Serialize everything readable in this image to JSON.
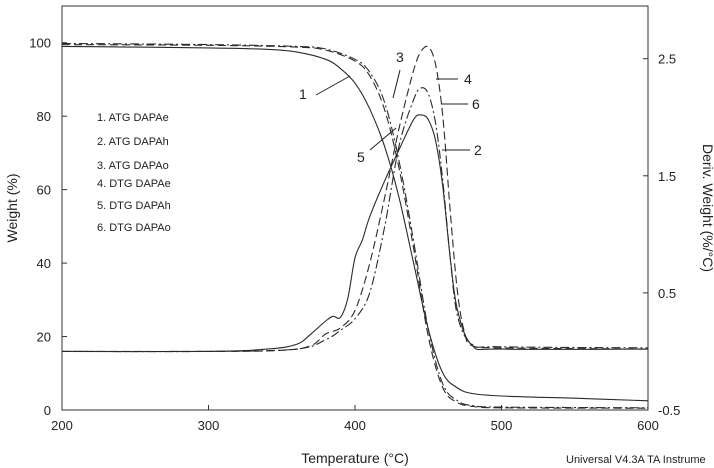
{
  "chart_data": {
    "type": "line",
    "xlabel": "Temperature (°C)",
    "ylabel": "Weight (%)",
    "y2label": "Deriv. Weight (%/°C)",
    "xlim": [
      200,
      600
    ],
    "ylim": [
      0,
      110
    ],
    "y2lim": [
      -0.5,
      2.95
    ],
    "x_ticks": [
      200,
      300,
      400,
      500,
      600
    ],
    "y_ticks": [
      0,
      20,
      40,
      60,
      80,
      100
    ],
    "y2_ticks": [
      -0.5,
      0.5,
      1.5,
      2.5
    ],
    "legend": [
      "1. ATG DAPAe",
      "2. ATG DAPAh",
      "3. ATG DAPAo",
      "4. DTG DAPAe",
      "5. DTG DAPAh",
      "6. DTG DAPAo"
    ],
    "series": [
      {
        "label": "1",
        "axis": "left",
        "dash": "solid",
        "x": [
          200,
          250,
          300,
          340,
          360,
          380,
          390,
          400,
          410,
          420,
          430,
          440,
          450,
          460,
          470,
          480,
          500,
          550,
          600
        ],
        "y": [
          99,
          98.8,
          98.6,
          98.2,
          97.5,
          95.5,
          93,
          89,
          82,
          72,
          58,
          40,
          22,
          10,
          6,
          4.5,
          3.8,
          3.2,
          2.5
        ]
      },
      {
        "label": "2",
        "axis": "left",
        "dash": "longdash",
        "x": [
          200,
          300,
          360,
          380,
          400,
          410,
          420,
          430,
          440,
          450,
          460,
          470,
          480,
          500,
          600
        ],
        "y": [
          99.5,
          99.3,
          98.8,
          98,
          95,
          91,
          82,
          66,
          44,
          20,
          6,
          2,
          1,
          0.6,
          0.5
        ]
      },
      {
        "label": "3",
        "axis": "left",
        "dash": "dashdot",
        "x": [
          200,
          300,
          360,
          380,
          400,
          410,
          420,
          430,
          440,
          450,
          460,
          470,
          480,
          500,
          600
        ],
        "y": [
          99.8,
          99.5,
          99,
          98.3,
          95.5,
          92,
          84,
          68,
          46,
          22,
          7,
          2.5,
          1.2,
          0.8,
          0.6
        ]
      },
      {
        "label": "4",
        "axis": "right",
        "dash": "longdash",
        "x": [
          200,
          300,
          350,
          370,
          380,
          390,
          400,
          410,
          420,
          430,
          440,
          445,
          450,
          455,
          460,
          465,
          470,
          475,
          480,
          500,
          600
        ],
        "y": [
          0,
          0,
          0.01,
          0.05,
          0.15,
          0.2,
          0.35,
          0.75,
          1.3,
          1.9,
          2.4,
          2.56,
          2.6,
          2.45,
          2.0,
          1.2,
          0.5,
          0.15,
          0.05,
          0.03,
          0.02
        ]
      },
      {
        "label": "5",
        "axis": "right",
        "dash": "solid",
        "x": [
          200,
          300,
          340,
          360,
          370,
          380,
          385,
          390,
          395,
          400,
          405,
          410,
          420,
          430,
          440,
          445,
          450,
          455,
          460,
          465,
          470,
          480,
          500,
          600
        ],
        "y": [
          0,
          0,
          0.02,
          0.06,
          0.15,
          0.26,
          0.3,
          0.29,
          0.45,
          0.8,
          0.95,
          1.15,
          1.45,
          1.72,
          1.98,
          2.02,
          1.98,
          1.8,
          1.4,
          0.8,
          0.35,
          0.05,
          0.02,
          0.02
        ]
      },
      {
        "label": "6",
        "axis": "right",
        "dash": "dashdot",
        "x": [
          200,
          300,
          360,
          380,
          390,
          400,
          410,
          420,
          430,
          440,
          445,
          450,
          455,
          460,
          465,
          470,
          480,
          500,
          600
        ],
        "y": [
          0,
          0,
          0.02,
          0.1,
          0.18,
          0.28,
          0.5,
          1.05,
          1.75,
          2.15,
          2.25,
          2.2,
          1.95,
          1.45,
          0.8,
          0.3,
          0.06,
          0.04,
          0.03
        ]
      }
    ]
  },
  "footer": "Universal V4.3A TA Instrume"
}
